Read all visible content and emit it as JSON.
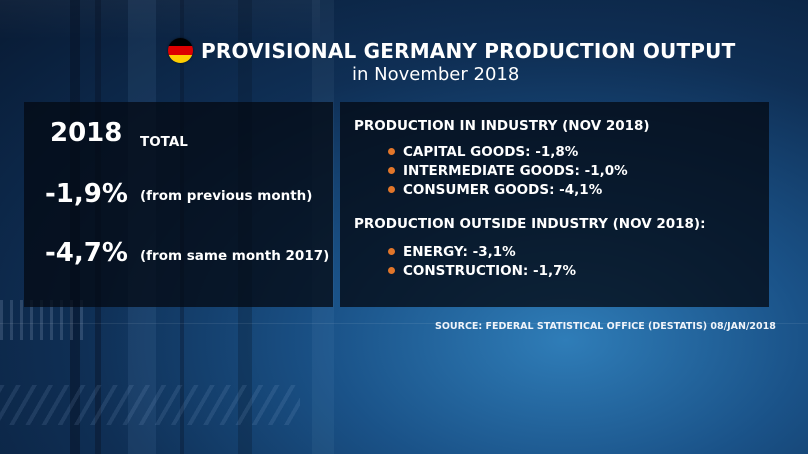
{
  "header": {
    "title": "PROVISIONAL GERMANY PRODUCTION OUTPUT",
    "subtitle": "in November 2018"
  },
  "left_panel": {
    "year": "2018",
    "total_label": "TOTAL",
    "rows": [
      {
        "value": "-1,9%",
        "note": "(from previous month)"
      },
      {
        "value": "-4,7%",
        "note": "(from same month 2017)"
      }
    ]
  },
  "right_panel": {
    "industry_heading": "PRODUCTION IN INDUSTRY (NOV 2018)",
    "industry_items": [
      "CAPITAL GOODS: -1,8%",
      "INTERMEDIATE GOODS: -1,0%",
      "CONSUMER GOODS: -4,1%"
    ],
    "outside_heading": "PRODUCTION OUTSIDE INDUSTRY (NOV 2018):",
    "outside_items": [
      "ENERGY: -3,1%",
      "CONSTRUCTION: -1,7%"
    ]
  },
  "source": "SOURCE: FEDERAL STATISTICAL OFFICE (DESTATIS) 08/JAN/2018",
  "icons": {
    "flag": "germany-flag-icon",
    "bullet": "orange-dot"
  },
  "colors": {
    "bullet": "#e2762a",
    "flag": [
      "#000000",
      "#dd0000",
      "#ffce00"
    ],
    "panel": "#040a14"
  }
}
